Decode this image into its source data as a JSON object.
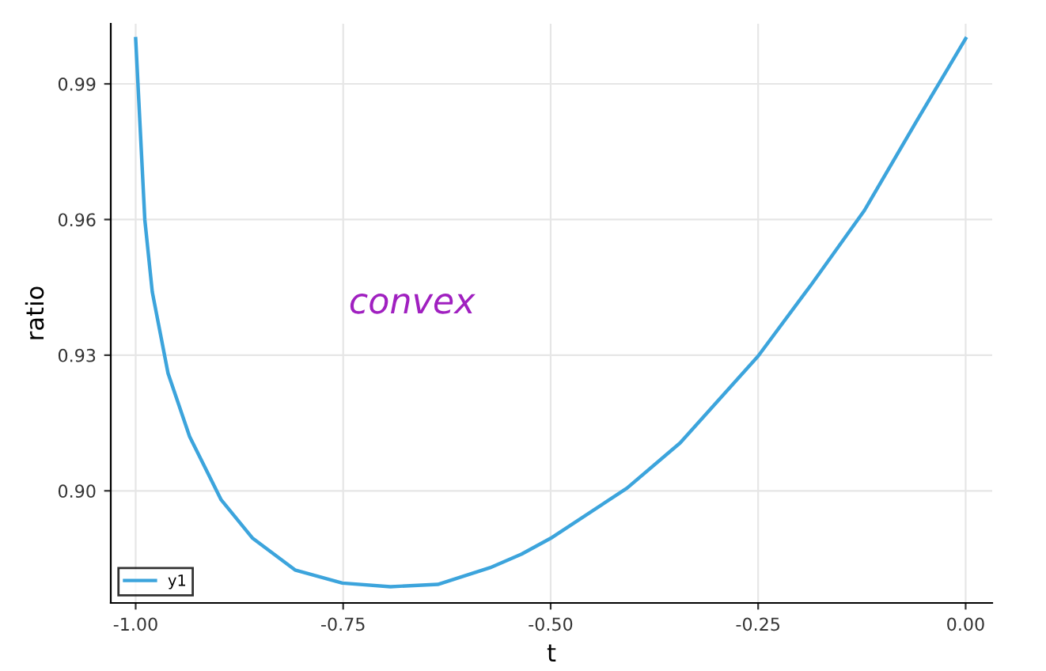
{
  "chart_data": {
    "type": "line",
    "xlabel": "t",
    "ylabel": "ratio",
    "xlim": [
      -1.03,
      0.032
    ],
    "ylim": [
      0.8752,
      1.0033
    ],
    "xticks": [
      {
        "value": -1,
        "label": "-1.00"
      },
      {
        "value": -0.75,
        "label": "-0.75"
      },
      {
        "value": -0.5,
        "label": "-0.50"
      },
      {
        "value": -0.25,
        "label": "-0.25"
      },
      {
        "value": 0,
        "label": "0.00"
      }
    ],
    "yticks": [
      {
        "value": 0.9,
        "label": "0.90"
      },
      0.93,
      0.96,
      0.99
    ],
    "grid": true,
    "legend": "bottom left",
    "annotations": [
      "convex"
    ],
    "series": [
      {
        "name": "y1",
        "color": "#3ca4dc",
        "x": [
          -1.0,
          -0.989,
          -0.98,
          -0.961,
          -0.935,
          -0.897,
          -0.859,
          -0.808,
          -0.751,
          -0.693,
          -0.636,
          -0.573,
          -0.535,
          -0.5,
          -0.408,
          -0.344,
          -0.25,
          -0.186,
          -0.122,
          -0.059,
          0.0
        ],
        "values": [
          1.0,
          0.96,
          0.944,
          0.926,
          0.912,
          0.898,
          0.8895,
          0.8825,
          0.8796,
          0.8788,
          0.8793,
          0.883,
          0.886,
          0.8895,
          0.9006,
          0.9106,
          0.9298,
          0.9456,
          0.962,
          0.9818,
          1.0
        ]
      }
    ]
  }
}
